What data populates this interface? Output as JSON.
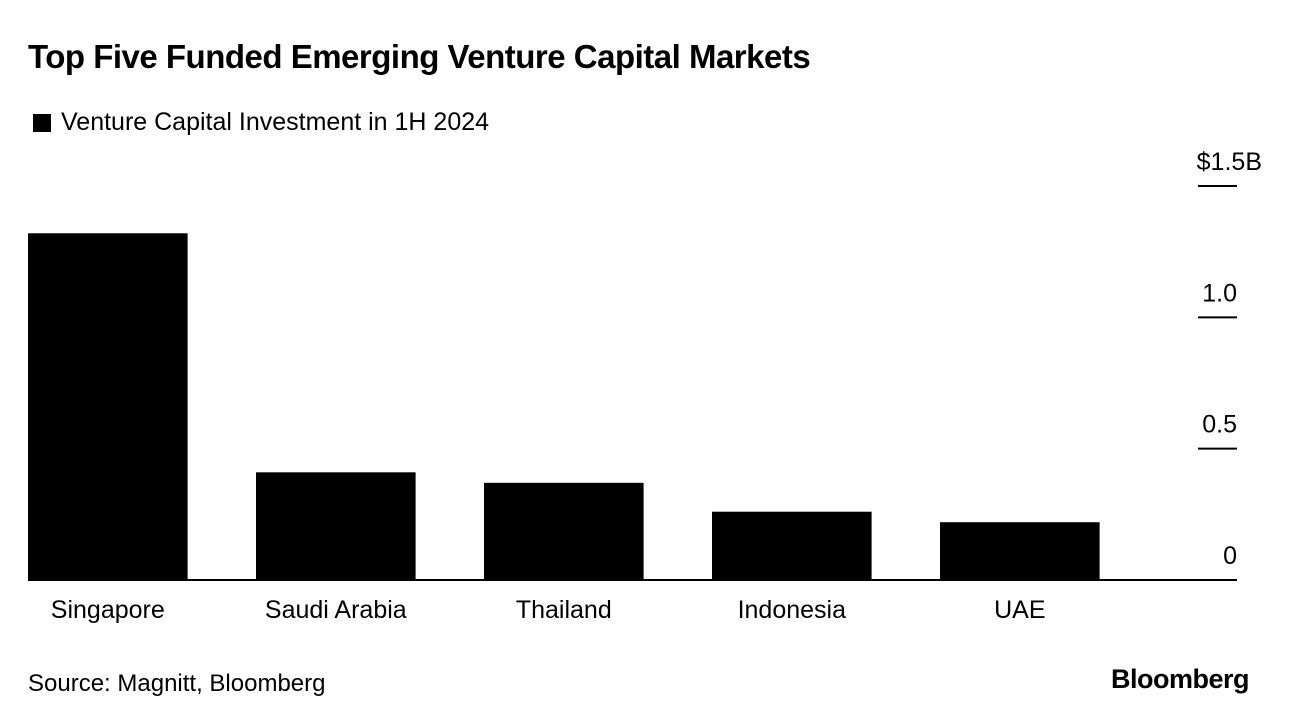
{
  "colors": {
    "bar": "#000000",
    "axis": "#000000",
    "text": "#000000",
    "background": "#ffffff"
  },
  "chart_data": {
    "type": "bar",
    "title": "Top Five Funded Emerging Venture Capital Markets",
    "xlabel": "",
    "ylabel": "",
    "categories": [
      "Singapore",
      "Saudi Arabia",
      "Thailand",
      "Indonesia",
      "UAE"
    ],
    "series": [
      {
        "name": "Venture Capital Investment in 1H 2024",
        "values": [
          1.32,
          0.41,
          0.37,
          0.26,
          0.22
        ]
      }
    ],
    "ylim": [
      0,
      1.5
    ],
    "y_ticks": [
      {
        "value": 0,
        "label": "0"
      },
      {
        "value": 0.5,
        "label": "0.5"
      },
      {
        "value": 1.0,
        "label": "1.0"
      },
      {
        "value": 1.5,
        "label": "$1.5B"
      }
    ],
    "y_axis_side": "right",
    "grid": false,
    "legend": "top-left"
  },
  "footer": {
    "source": "Source: Magnitt, Bloomberg",
    "logo": "Bloomberg"
  }
}
